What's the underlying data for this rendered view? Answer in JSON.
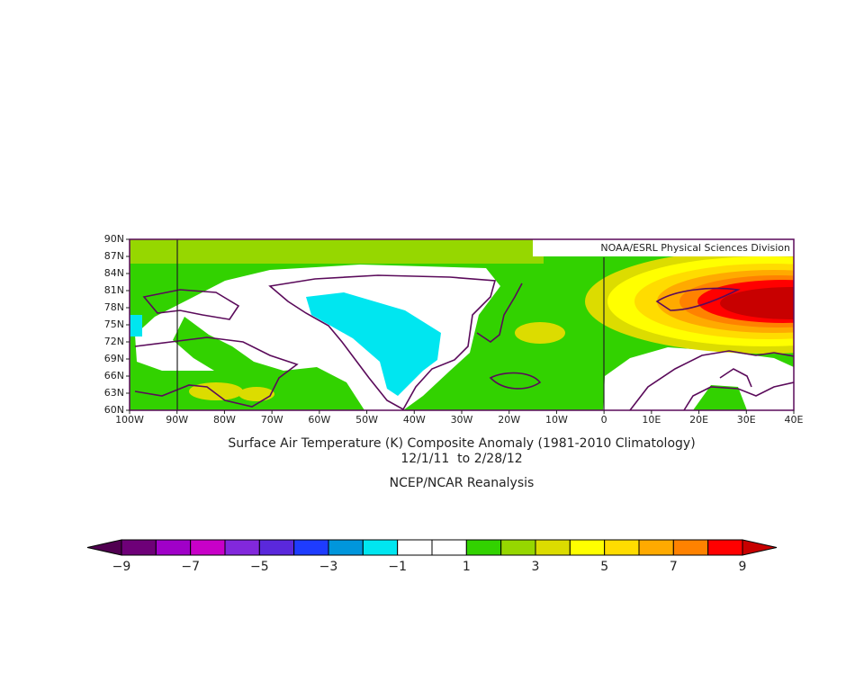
{
  "credit": "NOAA/ESRL Physical Sciences Division",
  "lat_labels": [
    "90N",
    "87N",
    "84N",
    "81N",
    "78N",
    "75N",
    "72N",
    "69N",
    "66N",
    "63N",
    "60N"
  ],
  "lon_labels": [
    "100W",
    "90W",
    "80W",
    "70W",
    "60W",
    "50W",
    "40W",
    "30W",
    "20W",
    "10W",
    "0",
    "10E",
    "20E",
    "30E",
    "40E"
  ],
  "title": "Surface Air Temperature (K) Composite Anomaly (1981-2010 Climatology)",
  "dates": "12/1/11  to 2/28/12",
  "source": "NCEP/NCAR Reanalysis",
  "colorbar": {
    "labels": [
      "−9",
      "−7",
      "−5",
      "−3",
      "−1",
      "1",
      "3",
      "5",
      "7",
      "9"
    ],
    "colors": [
      "#500050",
      "#6e0078",
      "#a000c8",
      "#c800c8",
      "#8228dc",
      "#5a28dc",
      "#1e3cff",
      "#0096dc",
      "#00e6f0",
      "#ffffff",
      "#ffffff",
      "#32d200",
      "#96d700",
      "#dcdc00",
      "#ffff00",
      "#ffdc00",
      "#ffaa00",
      "#ff8200",
      "#ff0000",
      "#c80000"
    ]
  }
}
